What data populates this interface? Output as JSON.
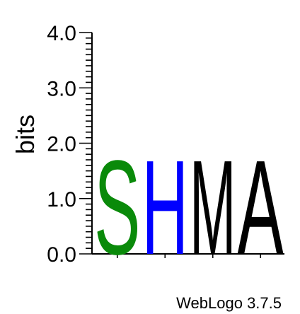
{
  "chart_data": {
    "type": "sequence-logo",
    "ylabel": "bits",
    "ylim": [
      0,
      4.0
    ],
    "y_ticks": [
      "0.0",
      "1.0",
      "2.0",
      "3.0",
      "4.0"
    ],
    "positions": [
      {
        "letter": "S",
        "height": 1.75,
        "color": "#0a8a0a"
      },
      {
        "letter": "H",
        "height": 1.75,
        "color": "#0000ff"
      },
      {
        "letter": "M",
        "height": 1.75,
        "color": "#000000"
      },
      {
        "letter": "A",
        "height": 1.75,
        "color": "#000000"
      }
    ]
  },
  "credit": "WebLogo 3.7.5"
}
